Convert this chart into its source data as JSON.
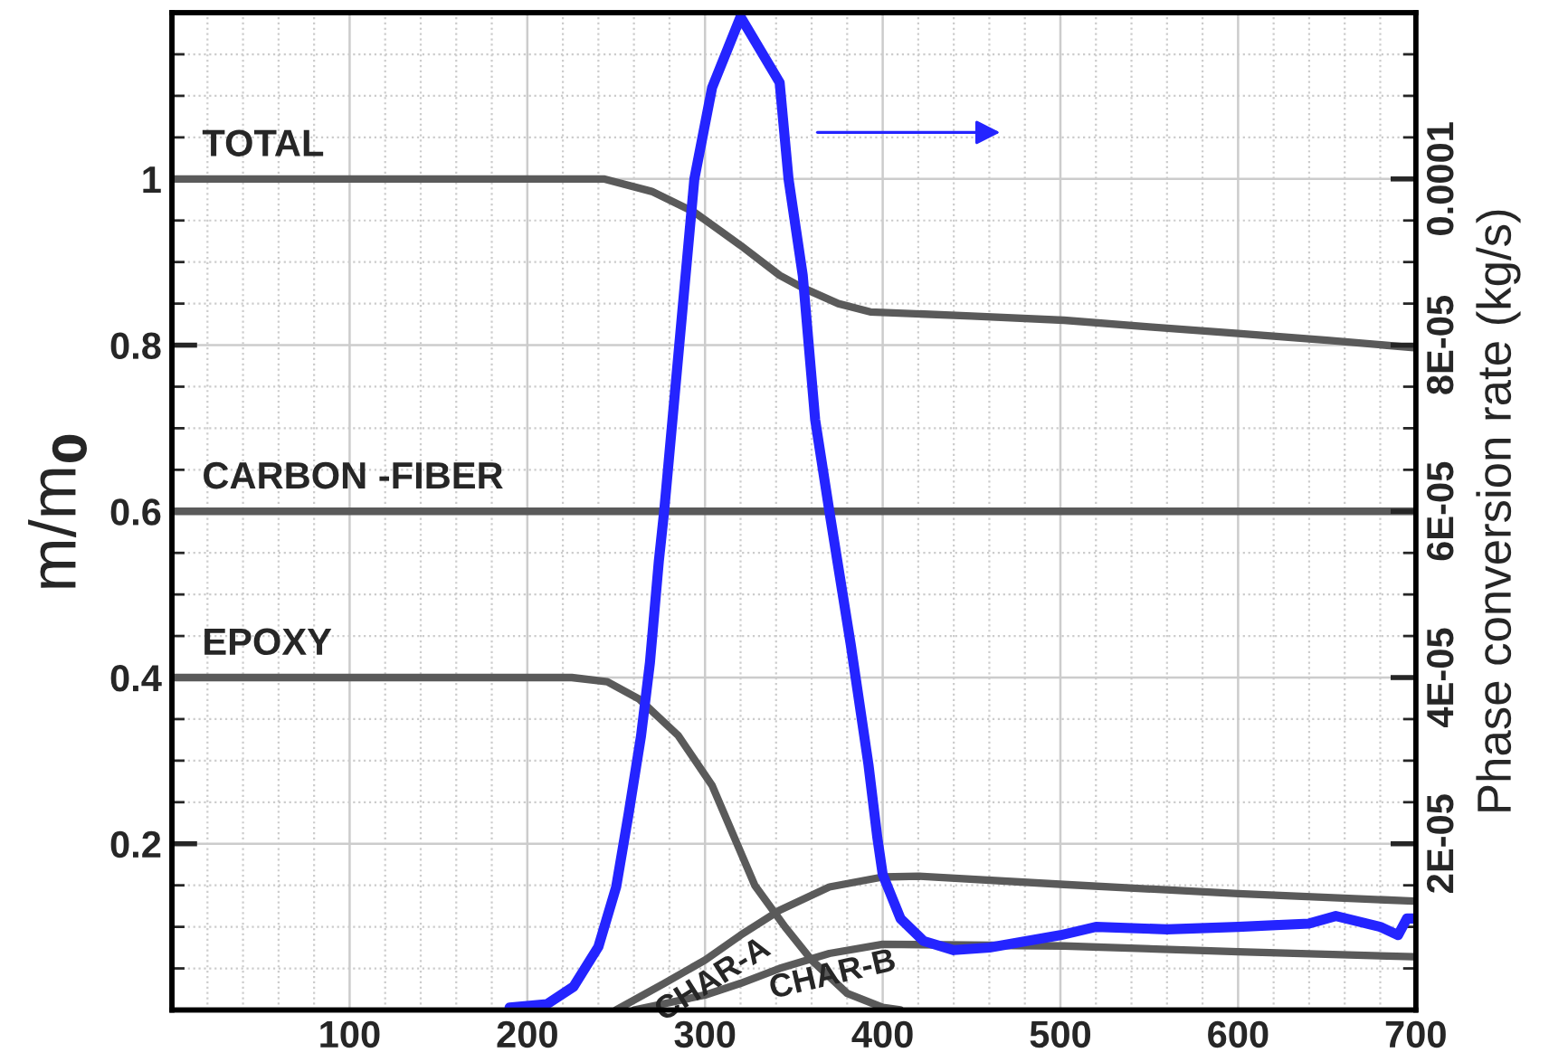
{
  "chart_data": {
    "type": "line",
    "ylabel": "m/m$_{0}$",
    "y2label": "Phase conversion rate (kg/s)",
    "xlim": [
      0,
      700
    ],
    "ylim": [
      0,
      1.2
    ],
    "y2lim": [
      0,
      0.00012
    ],
    "grid": true,
    "marker": "none",
    "line_style": "solid",
    "xticks": [
      {
        "value": 0,
        "label": null
      },
      {
        "value": 20,
        "label": null
      },
      {
        "value": 40,
        "label": null
      },
      {
        "value": 60,
        "label": null
      },
      {
        "value": 80,
        "label": null
      },
      100,
      {
        "value": 120,
        "label": null
      },
      {
        "value": 140,
        "label": null
      },
      {
        "value": 160,
        "label": null
      },
      {
        "value": 180,
        "label": null
      },
      200,
      {
        "value": 220,
        "label": null
      },
      {
        "value": 240,
        "label": null
      },
      {
        "value": 260,
        "label": null
      },
      {
        "value": 280,
        "label": null
      },
      300,
      {
        "value": 320,
        "label": null
      },
      {
        "value": 340,
        "label": null
      },
      {
        "value": 360,
        "label": null
      },
      {
        "value": 380,
        "label": null
      },
      400,
      {
        "value": 420,
        "label": null
      },
      {
        "value": 440,
        "label": null
      },
      {
        "value": 460,
        "label": null
      },
      {
        "value": 480,
        "label": null
      },
      500,
      {
        "value": 520,
        "label": null
      },
      {
        "value": 540,
        "label": null
      },
      {
        "value": 560,
        "label": null
      },
      {
        "value": 580,
        "label": null
      },
      600,
      {
        "value": 620,
        "label": null
      },
      {
        "value": 640,
        "label": null
      },
      {
        "value": 660,
        "label": null
      },
      {
        "value": 680,
        "label": null
      },
      700
    ],
    "yticks": [
      {
        "value": 0.05,
        "label": null
      },
      {
        "value": 0.1,
        "label": null
      },
      {
        "value": 0.15,
        "label": null
      },
      0.2,
      {
        "value": 0.25,
        "label": null
      },
      {
        "value": 0.3,
        "label": null
      },
      {
        "value": 0.35,
        "label": null
      },
      0.4,
      {
        "value": 0.45,
        "label": null
      },
      {
        "value": 0.5,
        "label": null
      },
      {
        "value": 0.55,
        "label": null
      },
      0.6,
      {
        "value": 0.65,
        "label": null
      },
      {
        "value": 0.7,
        "label": null
      },
      {
        "value": 0.75,
        "label": null
      },
      0.8,
      {
        "value": 0.85,
        "label": null
      },
      {
        "value": 0.9,
        "label": null
      },
      {
        "value": 0.95,
        "label": null
      },
      1,
      {
        "value": 1.05,
        "label": null
      },
      {
        "value": 1.1,
        "label": null
      },
      {
        "value": 1.15,
        "label": null
      }
    ],
    "y2ticks": [
      {
        "value": 5e-06,
        "label": null
      },
      {
        "value": 1e-05,
        "label": null
      },
      {
        "value": 1.5e-05,
        "label": null
      },
      {
        "value": 2e-05,
        "label": "2E-05"
      },
      {
        "value": 2.5e-05,
        "label": null
      },
      {
        "value": 3e-05,
        "label": null
      },
      {
        "value": 3.5e-05,
        "label": null
      },
      {
        "value": 4e-05,
        "label": "4E-05"
      },
      {
        "value": 4.5e-05,
        "label": null
      },
      {
        "value": 5e-05,
        "label": null
      },
      {
        "value": 5.5e-05,
        "label": null
      },
      {
        "value": 6e-05,
        "label": "6E-05"
      },
      {
        "value": 6.5e-05,
        "label": null
      },
      {
        "value": 7e-05,
        "label": null
      },
      {
        "value": 7.5e-05,
        "label": null
      },
      {
        "value": 8e-05,
        "label": "8E-05"
      },
      {
        "value": 8.5e-05,
        "label": null
      },
      {
        "value": 9e-05,
        "label": null
      },
      {
        "value": 9.5e-05,
        "label": null
      },
      {
        "value": 0.0001,
        "label": "0.0001"
      },
      {
        "value": 0.000105,
        "label": null
      },
      {
        "value": 0.00011,
        "label": null
      },
      {
        "value": 0.000115,
        "label": null
      }
    ],
    "series": [
      {
        "name": "TOTAL",
        "color": "#5a5a5a",
        "x": [
          0,
          100,
          200,
          230,
          243,
          270,
          294,
          320,
          342,
          355,
          375,
          393,
          450,
          502,
          550,
          600,
          650,
          699
        ],
        "values": [
          1,
          1,
          1,
          1,
          1,
          0.985,
          0.96,
          0.92,
          0.884,
          0.869,
          0.85,
          0.84,
          0.835,
          0.83,
          0.822,
          0.814,
          0.806,
          0.797
        ]
      },
      {
        "name": "CARBON -FIBER",
        "color": "#5a5a5a",
        "x": [
          0,
          100,
          200,
          300,
          400,
          500,
          600,
          700
        ],
        "values": [
          0.6,
          0.6,
          0.6,
          0.6,
          0.6,
          0.6,
          0.6,
          0.6
        ]
      },
      {
        "name": "EPOXY",
        "color": "#5a5a5a",
        "x": [
          0,
          100,
          200,
          225,
          245,
          263,
          285,
          304,
          328,
          345,
          360,
          380,
          400,
          410
        ],
        "values": [
          0.4,
          0.4,
          0.4,
          0.4,
          0.395,
          0.374,
          0.33,
          0.27,
          0.15,
          0.1,
          0.06,
          0.02,
          0.003,
          0
        ]
      },
      {
        "name": "CHAR-A",
        "color": "#5a5a5a",
        "x": [
          250,
          277,
          300,
          320,
          342,
          370,
          400,
          420,
          502,
          600,
          699
        ],
        "values": [
          0,
          0.032,
          0.06,
          0.09,
          0.12,
          0.148,
          0.16,
          0.161,
          0.151,
          0.14,
          0.131
        ]
      },
      {
        "name": "CHAR-B",
        "color": "#5a5a5a",
        "x": [
          260,
          300,
          320,
          342,
          370,
          400,
          502,
          600,
          699
        ],
        "values": [
          0,
          0.018,
          0.032,
          0.05,
          0.068,
          0.079,
          0.077,
          0.07,
          0.064
        ]
      },
      {
        "color": "#2424ff",
        "axis": "y2",
        "x": [
          190,
          211,
          226,
          240,
          250,
          257,
          264,
          269,
          274,
          277,
          294,
          304,
          320,
          342,
          347,
          355,
          362,
          370,
          382,
          392,
          397,
          400,
          410,
          423,
          440,
          460,
          500,
          520,
          560,
          600,
          640,
          655,
          680,
          690,
          695,
          700
        ],
        "values": [
          3e-07,
          7e-07,
          2.8e-06,
          7.6e-06,
          1.48e-05,
          2.36e-05,
          3.3e-05,
          4.18e-05,
          5.4e-05,
          6e-05,
          0.0001,
          0.000111,
          0.0001195,
          0.0001116,
          0.0001,
          8.84e-05,
          7.1e-05,
          6e-05,
          4.4e-05,
          2.95e-05,
          2.07e-05,
          1.63e-05,
          1.1e-05,
          8.3e-06,
          7.2e-06,
          7.5e-06,
          9e-06,
          1e-05,
          9.7e-06,
          1e-05,
          1.04e-05,
          1.13e-05,
          1e-05,
          9e-06,
          1.1e-05,
          1.1e-05
        ]
      }
    ]
  }
}
